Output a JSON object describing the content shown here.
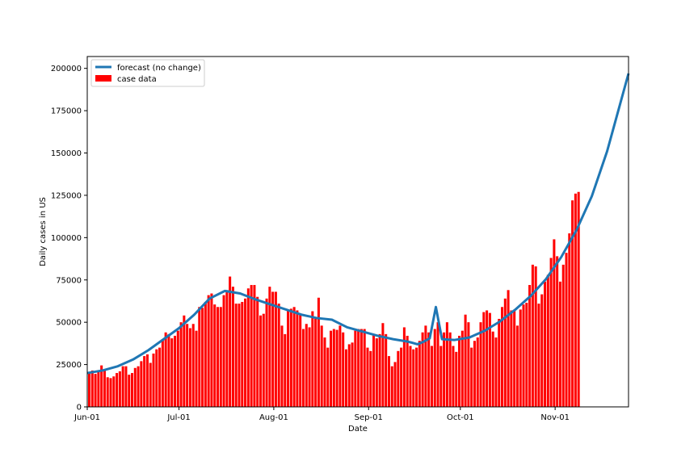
{
  "chart_data": {
    "type": "bar",
    "title": "",
    "xlabel": "Date",
    "ylabel": "Daily cases in US",
    "ylim": [
      0,
      207000
    ],
    "xlim_day_range": [
      0,
      177
    ],
    "start_date": "2020-06-01",
    "grid": false,
    "legend_position": "top-left",
    "x_ticks": [
      {
        "label": "Jun-01",
        "day": 0
      },
      {
        "label": "Jul-01",
        "day": 30
      },
      {
        "label": "Aug-01",
        "day": 61
      },
      {
        "label": "Sep-01",
        "day": 92
      },
      {
        "label": "Oct-01",
        "day": 122
      },
      {
        "label": "Nov-01",
        "day": 153
      }
    ],
    "y_ticks": [
      0,
      25000,
      50000,
      75000,
      100000,
      125000,
      150000,
      175000,
      200000
    ],
    "y_tick_labels": [
      "0",
      "25000",
      "50000",
      "75000",
      "100000",
      "125000",
      "150000",
      "175000",
      "200000"
    ],
    "series": [
      {
        "name": "case data",
        "kind": "bar",
        "color": "#ff0000",
        "values": [
          20000,
          21500,
          19500,
          21000,
          24500,
          22000,
          17500,
          17000,
          18000,
          20000,
          21000,
          24000,
          24000,
          19000,
          20000,
          23000,
          24000,
          27000,
          30000,
          31000,
          26000,
          31500,
          34000,
          35000,
          40000,
          44000,
          43000,
          40500,
          42000,
          45000,
          50000,
          54000,
          49000,
          46500,
          49000,
          45000,
          59000,
          58500,
          62000,
          66000,
          67000,
          60500,
          59000,
          59000,
          66000,
          69000,
          77000,
          71000,
          61000,
          61000,
          62000,
          64000,
          70000,
          72000,
          72000,
          65000,
          54000,
          55000,
          64000,
          71000,
          68000,
          68000,
          61000,
          48000,
          43000,
          57000,
          58000,
          59000,
          57000,
          55000,
          46000,
          49000,
          47000,
          56500,
          52000,
          64500,
          48000,
          41000,
          35000,
          45000,
          46000,
          45500,
          48000,
          44000,
          34000,
          37000,
          38000,
          45000,
          46000,
          46000,
          46000,
          35000,
          33000,
          43000,
          40500,
          43000,
          49500,
          43000,
          30000,
          24000,
          26500,
          33000,
          35000,
          47000,
          42000,
          36000,
          34000,
          35000,
          39000,
          44000,
          48000,
          44000,
          36000,
          46000,
          50000,
          36000,
          44000,
          50000,
          44000,
          36000,
          32500,
          42000,
          45000,
          54500,
          50000,
          35000,
          39000,
          41000,
          50000,
          56000,
          57000,
          55500,
          44500,
          41000,
          52000,
          59000,
          64000,
          69000,
          57000,
          57000,
          48000,
          57500,
          60500,
          61500,
          72000,
          84000,
          83000,
          61000,
          66500,
          74000,
          78000,
          88000,
          99000,
          89000,
          74000,
          84000,
          91000,
          102500,
          122000,
          126000,
          127000
        ]
      },
      {
        "name": "forecast (no change)",
        "kind": "line",
        "color": "#1f77b4",
        "x": [
          0,
          5,
          10,
          15,
          20,
          25,
          30,
          35,
          40,
          45,
          50,
          55,
          60,
          65,
          70,
          75,
          80,
          85,
          90,
          95,
          100,
          105,
          108,
          110,
          112,
          114,
          116,
          120,
          125,
          130,
          135,
          140,
          145,
          150,
          155,
          160,
          165,
          170,
          177
        ],
        "values": [
          20000,
          21500,
          24000,
          28000,
          33500,
          40000,
          46500,
          54500,
          64000,
          68500,
          67000,
          63500,
          60500,
          57500,
          54500,
          52500,
          51500,
          47000,
          44500,
          42000,
          40000,
          38500,
          37000,
          38500,
          40500,
          59000,
          40000,
          39500,
          41000,
          45000,
          50500,
          57500,
          65500,
          75500,
          88500,
          104500,
          124500,
          151000,
          197000
        ]
      }
    ]
  }
}
